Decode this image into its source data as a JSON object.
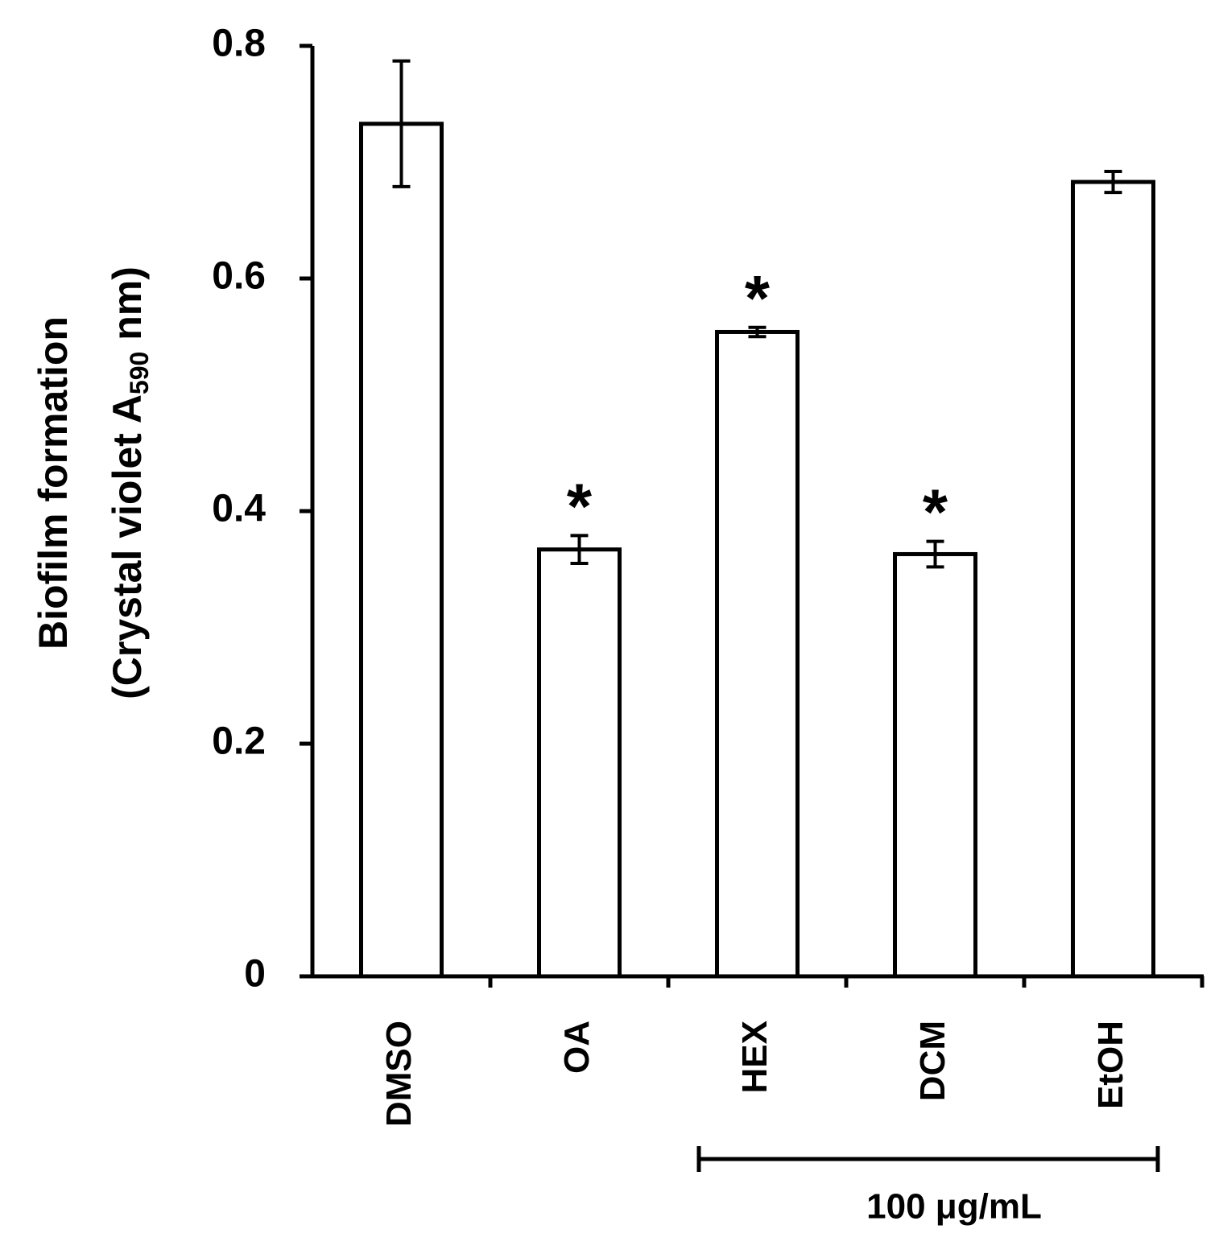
{
  "chart_data": {
    "type": "bar",
    "ylabel": [
      "Biofilm formation",
      "(Crystal violet A",
      "590",
      " nm)"
    ],
    "categories": [
      "DMSO",
      "OA",
      "HEX",
      "DCM",
      "EtOH"
    ],
    "values": [
      0.733,
      0.367,
      0.554,
      0.363,
      0.683
    ],
    "errors": [
      0.054,
      0.012,
      0.004,
      0.011,
      0.009
    ],
    "markers": [
      null,
      "*",
      "*",
      "*",
      null
    ],
    "bracket_label": "100 μg/mL",
    "color": "#ffffff",
    "ylim": [
      0,
      0.8
    ],
    "yticks": [
      0,
      0.2,
      0.4,
      0.6,
      0.8
    ],
    "grid": false
  }
}
